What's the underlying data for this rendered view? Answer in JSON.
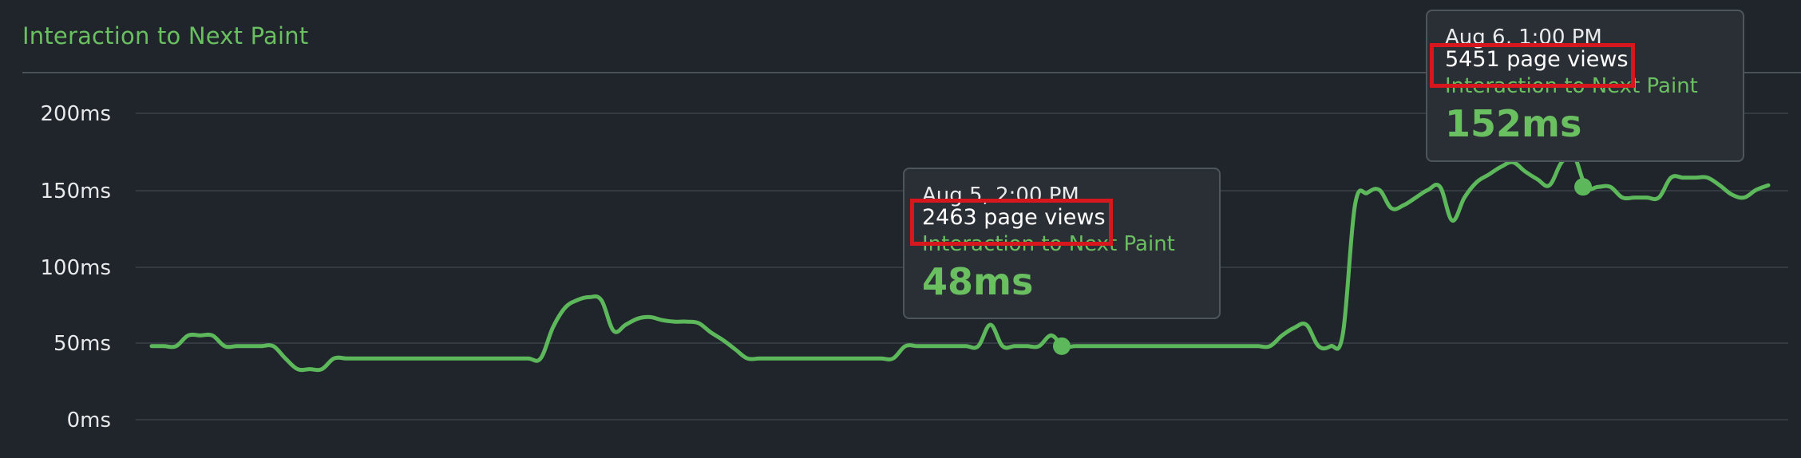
{
  "panel": {
    "title": "Interaction to Next Paint"
  },
  "colors": {
    "background": "#1f252b",
    "series": "#5cb85a",
    "accent_text": "#6abf60",
    "highlight": "#d6171d"
  },
  "chart_data": {
    "type": "line",
    "title": "Interaction to Next Paint",
    "xlabel": "",
    "ylabel": "",
    "y_ticks": [
      "200ms",
      "150ms",
      "100ms",
      "50ms",
      "0ms"
    ],
    "ylim": [
      0,
      200
    ],
    "grid": true,
    "series": [
      {
        "values": [
          48,
          48,
          48,
          55,
          55,
          55,
          48,
          48,
          48,
          48,
          48,
          40,
          33,
          33,
          33,
          40,
          40,
          40,
          40,
          40,
          40,
          40,
          40,
          40,
          40,
          40,
          40,
          40,
          40,
          40,
          40,
          40,
          40,
          60,
          73,
          78,
          80,
          78,
          58,
          62,
          66,
          67,
          65,
          64,
          64,
          63,
          57,
          52,
          46,
          40,
          40,
          40,
          40,
          40,
          40,
          40,
          40,
          40,
          40,
          40,
          40,
          40,
          48,
          48,
          48,
          48,
          48,
          48,
          48,
          62,
          48,
          48,
          48,
          48,
          55,
          48,
          48,
          48,
          48,
          48,
          48,
          48,
          48,
          48,
          48,
          48,
          48,
          48,
          48,
          48,
          48,
          48,
          48,
          55,
          60,
          62,
          48,
          48,
          56,
          140,
          148,
          150,
          138,
          140,
          145,
          150,
          152,
          130,
          145,
          155,
          160,
          165,
          168,
          162,
          157,
          153,
          168,
          172,
          152,
          152,
          152,
          145,
          145,
          145,
          145,
          158,
          158,
          158,
          158,
          153,
          147,
          145,
          150,
          153
        ]
      }
    ],
    "tooltips": [
      {
        "date": "Aug 5, 2:00 PM",
        "page_views": "2463 page views",
        "metric": "Interaction to Next Paint",
        "value": "48ms",
        "value_ms": 48
      },
      {
        "date": "Aug 6, 1:00 PM",
        "page_views": "5451 page views",
        "metric": "Interaction to Next Paint",
        "value": "152ms",
        "value_ms": 152
      }
    ]
  }
}
